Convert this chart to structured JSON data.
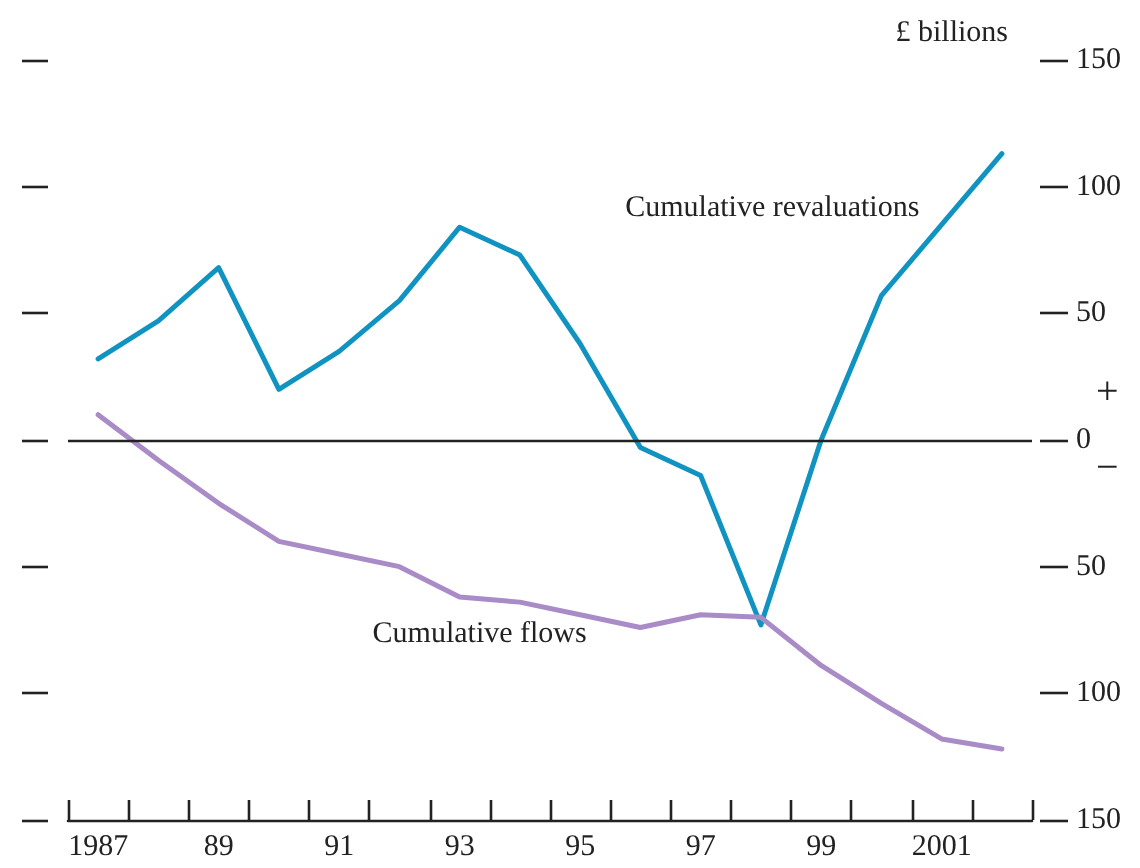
{
  "chart_data": {
    "type": "line",
    "ylabel": "£ billions",
    "categories": [
      "1987",
      null,
      "89",
      null,
      "91",
      null,
      "93",
      null,
      "95",
      null,
      "97",
      null,
      "99",
      null,
      "2001",
      null
    ],
    "series": [
      {
        "name": "Cumulative revaluations",
        "color": "#1193c1",
        "values": [
          32,
          47,
          68,
          20,
          35,
          55,
          84,
          73,
          38,
          -3,
          -14,
          -73,
          0,
          57,
          85,
          113
        ]
      },
      {
        "name": "Cumulative flows",
        "color": "#a88bc7",
        "values": [
          10,
          -8,
          -25,
          -40,
          -45,
          -50,
          -62,
          -64,
          -69,
          -74,
          -69,
          -70,
          -89,
          -104,
          -118,
          -122
        ]
      }
    ],
    "ylim": [
      -150,
      150
    ],
    "yticks": [
      {
        "value": -150,
        "label": "150"
      },
      {
        "value": -100,
        "label": "100"
      },
      {
        "value": -50,
        "label": "50"
      },
      0,
      50,
      100,
      150
    ],
    "ref_lines": [
      {
        "axis": "y",
        "value": 0,
        "color": "#222222"
      }
    ],
    "annotations": [
      "+",
      "−"
    ],
    "grid": false,
    "legend": false,
    "marker": "none",
    "line_style": "solid"
  }
}
